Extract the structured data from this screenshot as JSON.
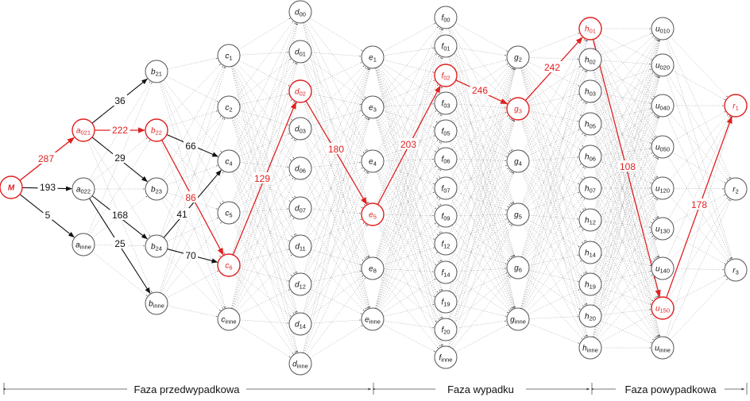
{
  "colors": {
    "highlight": "#e02020",
    "normal": "#111111",
    "edge_bg": "#9a9a9a"
  },
  "nodes": [
    {
      "id": "M",
      "base": "M",
      "sub": "",
      "hl": true,
      "bold": true
    },
    {
      "id": "a021",
      "base": "a",
      "sub": "021",
      "hl": true
    },
    {
      "id": "a022",
      "base": "a",
      "sub": "022"
    },
    {
      "id": "ainne",
      "base": "a",
      "sub": "inne"
    },
    {
      "id": "b21",
      "base": "b",
      "sub": "21"
    },
    {
      "id": "b22",
      "base": "b",
      "sub": "22",
      "hl": true
    },
    {
      "id": "b23",
      "base": "b",
      "sub": "23"
    },
    {
      "id": "b24",
      "base": "b",
      "sub": "24"
    },
    {
      "id": "binne",
      "base": "b",
      "sub": "inne"
    },
    {
      "id": "c1",
      "base": "c",
      "sub": "1"
    },
    {
      "id": "c2",
      "base": "c",
      "sub": "2"
    },
    {
      "id": "c4",
      "base": "c",
      "sub": "4"
    },
    {
      "id": "c5",
      "base": "c",
      "sub": "5"
    },
    {
      "id": "c6",
      "base": "c",
      "sub": "6",
      "hl": true
    },
    {
      "id": "cinne",
      "base": "c",
      "sub": "inne"
    },
    {
      "id": "d00",
      "base": "d",
      "sub": "00"
    },
    {
      "id": "d01",
      "base": "d",
      "sub": "01"
    },
    {
      "id": "d02",
      "base": "d",
      "sub": "02",
      "hl": true
    },
    {
      "id": "d03",
      "base": "d",
      "sub": "03"
    },
    {
      "id": "d06",
      "base": "d",
      "sub": "06"
    },
    {
      "id": "d07",
      "base": "d",
      "sub": "07"
    },
    {
      "id": "d11",
      "base": "d",
      "sub": "11"
    },
    {
      "id": "d12",
      "base": "d",
      "sub": "12"
    },
    {
      "id": "d14",
      "base": "d",
      "sub": "14"
    },
    {
      "id": "dinne",
      "base": "d",
      "sub": "inne"
    },
    {
      "id": "e1",
      "base": "e",
      "sub": "1"
    },
    {
      "id": "e3",
      "base": "e",
      "sub": "3"
    },
    {
      "id": "e4",
      "base": "e",
      "sub": "4"
    },
    {
      "id": "e5",
      "base": "e",
      "sub": "5",
      "hl": true
    },
    {
      "id": "e8",
      "base": "e",
      "sub": "8"
    },
    {
      "id": "einne",
      "base": "e",
      "sub": "inne"
    },
    {
      "id": "f00",
      "base": "f",
      "sub": "00"
    },
    {
      "id": "f01",
      "base": "f",
      "sub": "01"
    },
    {
      "id": "f02",
      "base": "f",
      "sub": "02",
      "hl": true
    },
    {
      "id": "f03",
      "base": "f",
      "sub": "03"
    },
    {
      "id": "f05",
      "base": "f",
      "sub": "05"
    },
    {
      "id": "f06",
      "base": "f",
      "sub": "06"
    },
    {
      "id": "f07",
      "base": "f",
      "sub": "07"
    },
    {
      "id": "f09",
      "base": "f",
      "sub": "09"
    },
    {
      "id": "f12",
      "base": "f",
      "sub": "12"
    },
    {
      "id": "f14",
      "base": "f",
      "sub": "14"
    },
    {
      "id": "f19",
      "base": "f",
      "sub": "19"
    },
    {
      "id": "f20",
      "base": "f",
      "sub": "20"
    },
    {
      "id": "finne",
      "base": "f",
      "sub": "inne"
    },
    {
      "id": "g2",
      "base": "g",
      "sub": "2"
    },
    {
      "id": "g3",
      "base": "g",
      "sub": "3",
      "hl": true
    },
    {
      "id": "g4",
      "base": "g",
      "sub": "4"
    },
    {
      "id": "g5",
      "base": "g",
      "sub": "5"
    },
    {
      "id": "g6",
      "base": "g",
      "sub": "6"
    },
    {
      "id": "ginne",
      "base": "g",
      "sub": "inne"
    },
    {
      "id": "h01",
      "base": "h",
      "sub": "01",
      "hl": true
    },
    {
      "id": "h02",
      "base": "h",
      "sub": "02"
    },
    {
      "id": "h03",
      "base": "h",
      "sub": "03"
    },
    {
      "id": "h05",
      "base": "h",
      "sub": "05"
    },
    {
      "id": "h06",
      "base": "h",
      "sub": "06"
    },
    {
      "id": "h07",
      "base": "h",
      "sub": "07"
    },
    {
      "id": "h12",
      "base": "h",
      "sub": "12"
    },
    {
      "id": "h14",
      "base": "h",
      "sub": "14"
    },
    {
      "id": "h19",
      "base": "h",
      "sub": "19"
    },
    {
      "id": "h20",
      "base": "h",
      "sub": "20"
    },
    {
      "id": "hinne",
      "base": "h",
      "sub": "inne"
    },
    {
      "id": "u010",
      "base": "u",
      "sub": "010"
    },
    {
      "id": "u020",
      "base": "u",
      "sub": "020"
    },
    {
      "id": "u040",
      "base": "u",
      "sub": "040"
    },
    {
      "id": "u050",
      "base": "u",
      "sub": "050"
    },
    {
      "id": "u120",
      "base": "u",
      "sub": "120"
    },
    {
      "id": "u130",
      "base": "u",
      "sub": "130"
    },
    {
      "id": "u140",
      "base": "u",
      "sub": "140"
    },
    {
      "id": "u150",
      "base": "u",
      "sub": "150",
      "hl": true
    },
    {
      "id": "uinne",
      "base": "u",
      "sub": "inne"
    },
    {
      "id": "r1",
      "base": "r",
      "sub": "1",
      "hl": true
    },
    {
      "id": "r2",
      "base": "r",
      "sub": "2"
    },
    {
      "id": "r3",
      "base": "r",
      "sub": "3"
    }
  ],
  "edges": [
    {
      "from": "M",
      "to": "a021",
      "label": "287",
      "hl": true
    },
    {
      "from": "M",
      "to": "a022",
      "label": "193"
    },
    {
      "from": "M",
      "to": "ainne",
      "label": "5"
    },
    {
      "from": "a021",
      "to": "b21",
      "label": "36"
    },
    {
      "from": "a021",
      "to": "b22",
      "label": "222",
      "hl": true
    },
    {
      "from": "a021",
      "to": "b23",
      "label": "29"
    },
    {
      "from": "a022",
      "to": "b24",
      "label": "168"
    },
    {
      "from": "a022",
      "to": "binne",
      "label": "25"
    },
    {
      "from": "b22",
      "to": "c4",
      "label": "66"
    },
    {
      "from": "b22",
      "to": "c6",
      "label": "86",
      "hl": true
    },
    {
      "from": "b24",
      "to": "c4",
      "label": "41"
    },
    {
      "from": "b24",
      "to": "c6",
      "label": "70"
    },
    {
      "from": "c6",
      "to": "d02",
      "label": "129",
      "hl": true
    },
    {
      "from": "d02",
      "to": "e5",
      "label": "180",
      "hl": true
    },
    {
      "from": "e5",
      "to": "f02",
      "label": "203",
      "hl": true
    },
    {
      "from": "f02",
      "to": "g3",
      "label": "246",
      "hl": true
    },
    {
      "from": "g3",
      "to": "h01",
      "label": "242",
      "hl": true
    },
    {
      "from": "h01",
      "to": "u150",
      "label": "108",
      "hl": true
    },
    {
      "from": "u150",
      "to": "r1",
      "label": "178",
      "hl": true
    }
  ],
  "phases": [
    {
      "label": "Faza przedwypadkowa"
    },
    {
      "label": "Faza wypadku"
    },
    {
      "label": "Faza powypadkowa"
    }
  ]
}
